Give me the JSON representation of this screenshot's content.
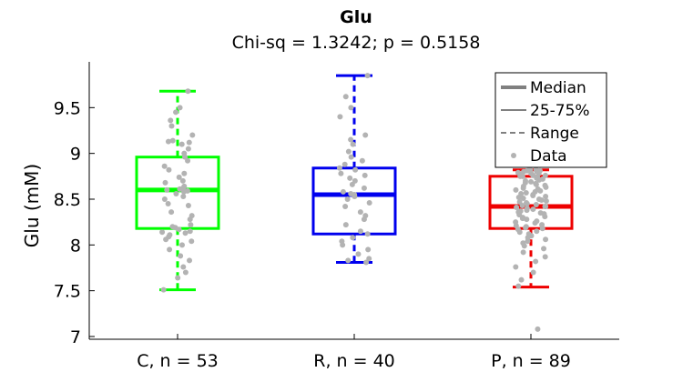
{
  "chart_data": {
    "type": "box",
    "title": "Glu",
    "subtitle": "Chi-sq = 1.3242; p = 0.5158",
    "xlabel": "",
    "ylabel": "Glu (mM)",
    "ylim": [
      6.97,
      10.0
    ],
    "yticks": [
      7,
      7.5,
      8,
      8.5,
      9,
      9.5
    ],
    "ytick_labels": [
      "7",
      "7.5",
      "8",
      "8.5",
      "9",
      "9.5"
    ],
    "grid": false,
    "categories": [
      "C, n = 53",
      "R, n = 40",
      "P, n = 89"
    ],
    "groups": [
      {
        "label": "C, n = 53",
        "color": "#00ff00",
        "median": 8.6,
        "q1": 8.18,
        "q3": 8.96,
        "whisker_low": 7.51,
        "whisker_high": 9.68,
        "points": [
          7.51,
          7.64,
          7.7,
          7.76,
          7.83,
          7.88,
          7.95,
          8.0,
          8.04,
          8.06,
          8.09,
          8.11,
          8.13,
          8.14,
          8.15,
          8.17,
          8.19,
          8.2,
          8.22,
          8.28,
          8.32,
          8.36,
          8.43,
          8.45,
          8.5,
          8.53,
          8.56,
          8.58,
          8.59,
          8.6,
          8.61,
          8.62,
          8.64,
          8.68,
          8.7,
          8.74,
          8.78,
          8.82,
          8.86,
          8.92,
          8.96,
          9.0,
          9.05,
          9.1,
          9.12,
          9.13,
          9.14,
          9.2,
          9.3,
          9.36,
          9.45,
          9.5,
          9.68
        ]
      },
      {
        "label": "R, n = 40",
        "color": "#0000ee",
        "median": 8.55,
        "q1": 8.12,
        "q3": 8.84,
        "whisker_low": 7.81,
        "whisker_high": 9.85,
        "points": [
          7.81,
          7.83,
          7.85,
          7.9,
          7.95,
          8.0,
          8.04,
          8.08,
          8.12,
          8.15,
          8.22,
          8.28,
          8.32,
          8.36,
          8.42,
          8.46,
          8.5,
          8.53,
          8.55,
          8.56,
          8.58,
          8.62,
          8.66,
          8.7,
          8.73,
          8.76,
          8.78,
          8.82,
          8.84,
          8.88,
          8.92,
          8.96,
          9.02,
          9.1,
          9.15,
          9.2,
          9.4,
          9.5,
          9.62,
          9.85
        ]
      },
      {
        "label": "P, n = 89",
        "color": "#ee0000",
        "median": 8.42,
        "q1": 8.18,
        "q3": 8.75,
        "whisker_low": 7.54,
        "whisker_high": 8.82,
        "points": [
          7.08,
          7.55,
          7.62,
          7.7,
          7.76,
          7.82,
          7.87,
          7.92,
          7.96,
          7.99,
          8.02,
          8.04,
          8.06,
          8.08,
          8.1,
          8.12,
          8.14,
          8.15,
          8.17,
          8.18,
          8.19,
          8.2,
          8.21,
          8.22,
          8.24,
          8.25,
          8.26,
          8.28,
          8.29,
          8.3,
          8.31,
          8.33,
          8.34,
          8.35,
          8.36,
          8.37,
          8.38,
          8.39,
          8.4,
          8.41,
          8.42,
          8.42,
          8.43,
          8.44,
          8.45,
          8.46,
          8.47,
          8.48,
          8.49,
          8.5,
          8.51,
          8.52,
          8.53,
          8.54,
          8.55,
          8.56,
          8.57,
          8.58,
          8.59,
          8.6,
          8.61,
          8.62,
          8.63,
          8.64,
          8.65,
          8.66,
          8.67,
          8.68,
          8.69,
          8.7,
          8.71,
          8.72,
          8.73,
          8.74,
          8.75,
          8.75,
          8.76,
          8.76,
          8.77,
          8.78,
          8.78,
          8.79,
          8.8,
          8.8,
          8.81,
          8.81,
          8.82,
          8.82,
          8.82
        ]
      }
    ],
    "legend": {
      "placement": "top-right",
      "items": [
        {
          "label": "Median",
          "style": "thick-line",
          "color": "#808080"
        },
        {
          "label": "25-75%",
          "style": "line",
          "color": "#808080"
        },
        {
          "label": "Range",
          "style": "dashed-line",
          "color": "#808080"
        },
        {
          "label": "Data",
          "style": "dot",
          "color": "#b3b3b3"
        }
      ]
    },
    "data_point_color": "#b3b3b3"
  }
}
